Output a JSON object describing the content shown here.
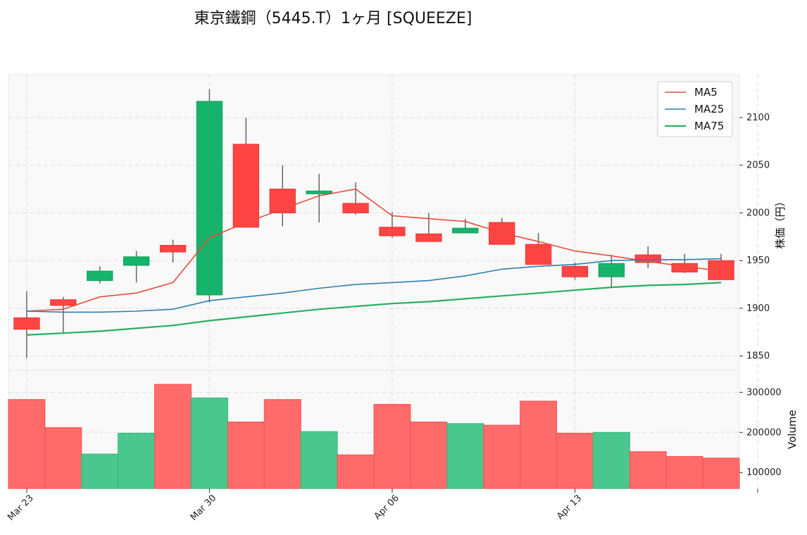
{
  "chart_data": {
    "type": "candlestick",
    "title": "東京鐵鋼（5445.T）1ヶ月 [SQUEEZE]",
    "price_axis": {
      "label": "株価（円）",
      "ylim": [
        1835,
        2145
      ],
      "ticks": [
        1850,
        1900,
        1950,
        2000,
        2050,
        2100
      ]
    },
    "volume_axis": {
      "label": "Volume",
      "ylim": [
        60000,
        355000
      ],
      "ticks": [
        100000,
        200000,
        300000
      ],
      "tick_labels": [
        "100000",
        "200000",
        "300000"
      ]
    },
    "x_axis": {
      "xlim": [
        -0.5,
        19.5
      ],
      "tick_positions": [
        0,
        5,
        10,
        15,
        20
      ],
      "tick_labels": [
        "Mar 23",
        "Mar 30",
        "Apr 06",
        "Apr 13",
        ""
      ]
    },
    "grid": true,
    "legend_position": "top-right",
    "colors": {
      "up": "#16b36b",
      "down": "#ff4444",
      "wick": "#666666",
      "grid": "#dddddd",
      "panel_bg": "#f9f9f9"
    },
    "candles": [
      {
        "o": 1890,
        "h": 1918,
        "l": 1848,
        "c": 1878
      },
      {
        "o": 1909,
        "h": 1912,
        "l": 1873,
        "c": 1903
      },
      {
        "o": 1929,
        "h": 1944,
        "l": 1926,
        "c": 1939
      },
      {
        "o": 1945,
        "h": 1960,
        "l": 1927,
        "c": 1954
      },
      {
        "o": 1966,
        "h": 1972,
        "l": 1948,
        "c": 1959
      },
      {
        "o": 1914,
        "h": 2130,
        "l": 1906,
        "c": 2117
      },
      {
        "o": 2072,
        "h": 2100,
        "l": 1985,
        "c": 1985
      },
      {
        "o": 2025,
        "h": 2050,
        "l": 1986,
        "c": 2000
      },
      {
        "o": 2020,
        "h": 2041,
        "l": 1990,
        "c": 2023
      },
      {
        "o": 2010,
        "h": 2032,
        "l": 1998,
        "c": 2000
      },
      {
        "o": 1985,
        "h": 2001,
        "l": 1974,
        "c": 1976
      },
      {
        "o": 1978,
        "h": 2000,
        "l": 1970,
        "c": 1970
      },
      {
        "o": 1979,
        "h": 1994,
        "l": 1979,
        "c": 1984
      },
      {
        "o": 1990,
        "h": 1995,
        "l": 1967,
        "c": 1967
      },
      {
        "o": 1967,
        "h": 1979,
        "l": 1946,
        "c": 1946
      },
      {
        "o": 1944,
        "h": 1948,
        "l": 1930,
        "c": 1933
      },
      {
        "o": 1933,
        "h": 1956,
        "l": 1922,
        "c": 1947
      },
      {
        "o": 1956,
        "h": 1965,
        "l": 1942,
        "c": 1948
      },
      {
        "o": 1947,
        "h": 1957,
        "l": 1937,
        "c": 1938
      },
      {
        "o": 1950,
        "h": 1957,
        "l": 1930,
        "c": 1930
      }
    ],
    "series": [
      {
        "name": "MA5",
        "color": "#e74c3c",
        "values": [
          1897,
          1899,
          1912,
          1916,
          1927,
          1974,
          1990,
          2004,
          2018,
          2025,
          1997,
          1994,
          1991,
          1979,
          1970,
          1960,
          1955,
          1949,
          1944,
          1939
        ]
      },
      {
        "name": "MA25",
        "color": "#2e7fb0",
        "values": [
          1897,
          1896,
          1896,
          1897,
          1899,
          1908,
          1912,
          1916,
          1921,
          1925,
          1927,
          1929,
          1934,
          1941,
          1944,
          1946,
          1950,
          1951,
          1951,
          1952
        ]
      },
      {
        "name": "MA75",
        "color": "#27ae60",
        "values": [
          1872,
          1874,
          1876,
          1879,
          1882,
          1887,
          1891,
          1895,
          1899,
          1902,
          1905,
          1907,
          1910,
          1913,
          1916,
          1919,
          1922,
          1924,
          1925,
          1927
        ]
      }
    ],
    "volume": [
      282000,
      212000,
      146000,
      198000,
      320000,
      286000,
      226000,
      282000,
      202000,
      144000,
      270000,
      226000,
      222000,
      218000,
      278000,
      198000,
      200000,
      152000,
      140000,
      136000
    ]
  }
}
